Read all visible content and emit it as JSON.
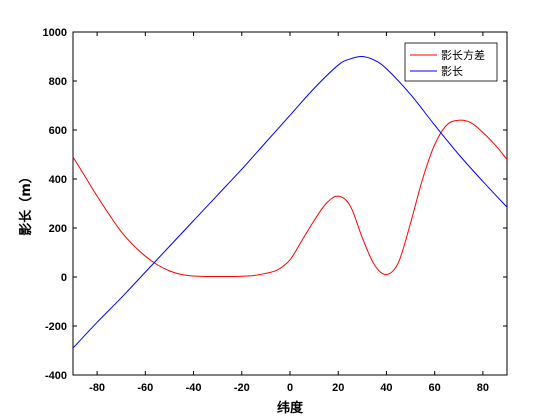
{
  "chart_data": {
    "type": "line",
    "xlabel": "纬度",
    "ylabel": "影长（m）",
    "xlim": [
      -90,
      90
    ],
    "ylim": [
      -400,
      1000
    ],
    "xticks": [
      -80,
      -60,
      -40,
      -20,
      0,
      20,
      40,
      60,
      80
    ],
    "yticks": [
      -400,
      -200,
      0,
      200,
      400,
      600,
      800,
      1000
    ],
    "grid": false,
    "legend_position": "top-right",
    "series": [
      {
        "name": "影长方差",
        "color": "#ff0000",
        "x": [
          -90,
          -85,
          -80,
          -75,
          -70,
          -65,
          -60,
          -55,
          -50,
          -45,
          -40,
          -35,
          -30,
          -25,
          -20,
          -15,
          -10,
          -5,
          0,
          5,
          10,
          15,
          20,
          25,
          30,
          35,
          40,
          45,
          50,
          55,
          60,
          65,
          70,
          75,
          80,
          85,
          90
        ],
        "values": [
          490,
          410,
          330,
          255,
          185,
          130,
          85,
          50,
          25,
          10,
          4,
          2,
          2,
          2,
          3,
          6,
          15,
          30,
          70,
          150,
          230,
          300,
          330,
          290,
          160,
          50,
          10,
          60,
          220,
          400,
          540,
          620,
          640,
          630,
          590,
          540,
          480
        ]
      },
      {
        "name": "影长",
        "color": "#0000ff",
        "x": [
          -90,
          -80,
          -70,
          -60,
          -50,
          -40,
          -30,
          -20,
          -10,
          0,
          10,
          20,
          25,
          30,
          35,
          40,
          50,
          60,
          70,
          80,
          90
        ],
        "values": [
          -290,
          -185,
          -85,
          20,
          125,
          230,
          335,
          440,
          550,
          660,
          770,
          865,
          890,
          900,
          885,
          850,
          745,
          620,
          500,
          390,
          285
        ]
      }
    ]
  }
}
